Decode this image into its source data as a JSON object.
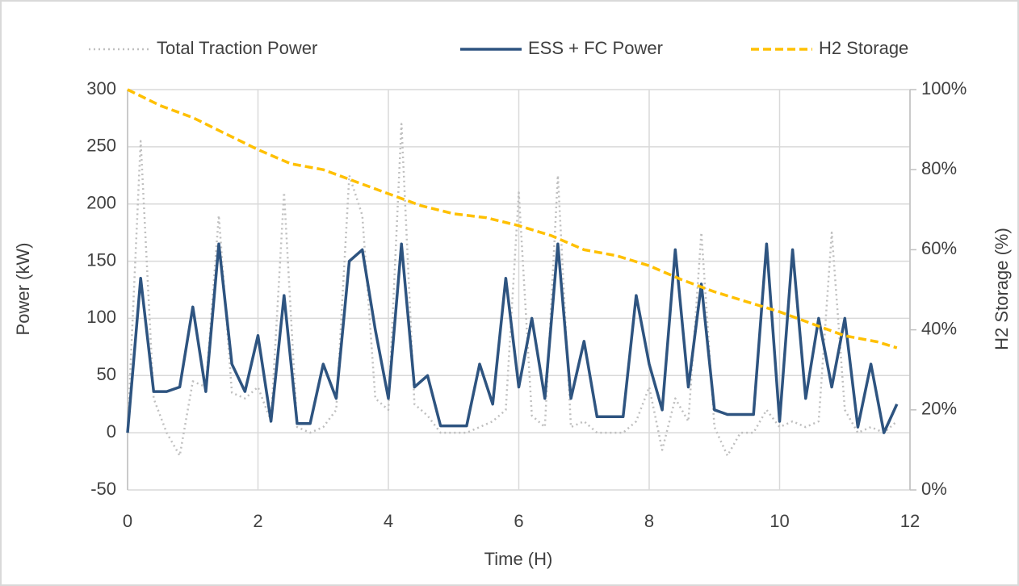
{
  "chart_data": {
    "type": "line",
    "x_label": "Time (H)",
    "y_label": "Power (kW)",
    "y2_label": "H2 Storage (%)",
    "x": [
      0,
      0.2,
      0.4,
      0.6,
      0.8,
      1.0,
      1.2,
      1.4,
      1.6,
      1.8,
      2.0,
      2.2,
      2.4,
      2.6,
      2.8,
      3.0,
      3.2,
      3.4,
      3.6,
      3.8,
      4.0,
      4.2,
      4.4,
      4.6,
      4.8,
      5.0,
      5.2,
      5.4,
      5.6,
      5.8,
      6.0,
      6.2,
      6.4,
      6.6,
      6.8,
      7.0,
      7.2,
      7.4,
      7.6,
      7.8,
      8.0,
      8.2,
      8.4,
      8.6,
      8.8,
      9.0,
      9.2,
      9.4,
      9.6,
      9.8,
      10.0,
      10.2,
      10.4,
      10.6,
      10.8,
      11.0,
      11.2,
      11.4,
      11.6,
      11.8
    ],
    "series": [
      {
        "name": "Total Traction Power",
        "color": "#bfbfbf",
        "style": "dotted",
        "values": [
          0,
          255,
          30,
          0,
          -20,
          45,
          40,
          190,
          35,
          30,
          40,
          10,
          210,
          5,
          0,
          5,
          20,
          225,
          190,
          30,
          20,
          270,
          25,
          15,
          0,
          0,
          0,
          5,
          10,
          20,
          210,
          15,
          5,
          225,
          5,
          10,
          0,
          0,
          0,
          10,
          40,
          -15,
          30,
          10,
          175,
          5,
          -20,
          0,
          0,
          20,
          5,
          10,
          5,
          10,
          175,
          20,
          0,
          5,
          0,
          10
        ]
      },
      {
        "name": "ESS + FC Power",
        "color": "#2e5480",
        "style": "solid",
        "values": [
          0,
          135,
          36,
          36,
          40,
          110,
          36,
          165,
          60,
          36,
          85,
          10,
          120,
          8,
          8,
          60,
          30,
          150,
          160,
          90,
          30,
          165,
          40,
          50,
          6,
          6,
          6,
          60,
          25,
          135,
          40,
          100,
          30,
          165,
          30,
          80,
          14,
          14,
          14,
          120,
          60,
          20,
          160,
          40,
          130,
          20,
          16,
          16,
          16,
          165,
          10,
          160,
          30,
          100,
          40,
          100,
          5,
          60,
          0,
          25
        ]
      },
      {
        "name": "H2 Storage",
        "color": "#ffc000",
        "style": "dashed",
        "axis": "y2",
        "x": [
          0,
          0.5,
          1,
          1.5,
          2,
          2.5,
          3,
          3.5,
          4,
          4.5,
          5,
          5.5,
          6,
          6.5,
          7,
          7.5,
          8,
          8.5,
          9,
          9.5,
          10,
          10.5,
          11,
          11.5,
          11.8
        ],
        "values": [
          100,
          96,
          93,
          89,
          85,
          81.5,
          80,
          77,
          74,
          71,
          69,
          68,
          66,
          63.5,
          60,
          58.5,
          56,
          52.5,
          49.5,
          47,
          44.5,
          41.5,
          38.5,
          37,
          35.5
        ]
      }
    ],
    "xlim": [
      0,
      12
    ],
    "xticks": [
      0,
      2,
      4,
      6,
      8,
      10,
      12
    ],
    "ylim": [
      -50,
      300
    ],
    "yticks": [
      -50,
      0,
      50,
      100,
      150,
      200,
      250,
      300
    ],
    "y2lim": [
      0,
      100
    ],
    "y2ticks": [
      {
        "value": 0,
        "label": "0%"
      },
      {
        "value": 20,
        "label": "20%"
      },
      {
        "value": 40,
        "label": "40%"
      },
      {
        "value": 60,
        "label": "60%"
      },
      {
        "value": 80,
        "label": "80%"
      },
      {
        "value": 100,
        "label": "100%"
      }
    ],
    "grid": true,
    "legend": "top"
  }
}
